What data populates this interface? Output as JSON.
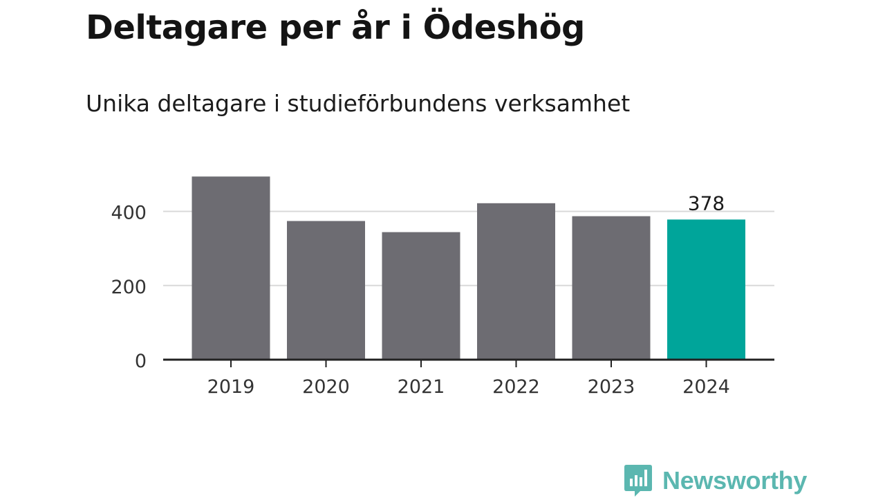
{
  "header": {
    "title": "Deltagare per år i Ödeshög",
    "subtitle": "Unika deltagare i studieförbundens verksamhet"
  },
  "brand": {
    "name": "Newsworthy",
    "icon": "newsworthy-logo-icon",
    "color": "#5bb7b0"
  },
  "chart_data": {
    "type": "bar",
    "title": "Deltagare per år i Ödeshög",
    "subtitle": "Unika deltagare i studieförbundens verksamhet",
    "xlabel": "",
    "ylabel": "",
    "categories": [
      "2019",
      "2020",
      "2021",
      "2022",
      "2023",
      "2024"
    ],
    "values": [
      494,
      374,
      344,
      422,
      387,
      378
    ],
    "highlight_index": 5,
    "data_labels": [
      {
        "index": 5,
        "text": "378"
      }
    ],
    "ylim": [
      0,
      500
    ],
    "yticks": [
      0,
      200,
      400
    ],
    "ytick_labels": [
      "0",
      "200",
      "400"
    ],
    "grid": true,
    "legend": "none",
    "colors": {
      "bar": "#6d6c72",
      "highlight": "#00a59a",
      "grid": "#d9d9d9",
      "axis": "#222222"
    }
  }
}
